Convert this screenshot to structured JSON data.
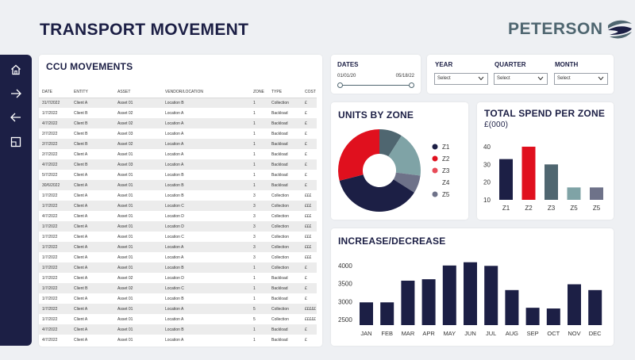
{
  "header": {
    "title": "TRANSPORT MOVEMENT",
    "brand": "PETERSON"
  },
  "sidebar": {
    "items": [
      {
        "icon": "home-icon"
      },
      {
        "icon": "arrow-right-icon"
      },
      {
        "icon": "arrow-left-icon"
      },
      {
        "icon": "layout-icon"
      }
    ]
  },
  "colors": {
    "navy": "#1c1f45",
    "red": "#e0101e",
    "slate": "#4f6670",
    "sage": "#6a8b87",
    "teal": "#7fa3a6",
    "grey": "#6e7289",
    "pink": "#e84b58"
  },
  "table": {
    "title": "CCU MOVEMENTS",
    "columns": [
      "DATE",
      "ENTITY",
      "ASSET",
      "VENDOR/LOCATION",
      "ZONE",
      "TYPE",
      "COST"
    ],
    "rows": [
      [
        "31/7/2022",
        "Client A",
        "Asset 01",
        "Location B",
        "1",
        "Collection",
        "£"
      ],
      [
        "1/7/2022",
        "Client B",
        "Asset 02",
        "Location A",
        "1",
        "Backload",
        "£"
      ],
      [
        "4/7/2022",
        "Client B",
        "Asset 02",
        "Location A",
        "1",
        "Backload",
        "£"
      ],
      [
        "2/7/2022",
        "Client B",
        "Asset 03",
        "Location A",
        "1",
        "Backload",
        "£"
      ],
      [
        "2/7/2022",
        "Client B",
        "Asset 02",
        "Location A",
        "1",
        "Backload",
        "£"
      ],
      [
        "2/7/2022",
        "Client A",
        "Asset 01",
        "Location A",
        "1",
        "Backload",
        "£"
      ],
      [
        "4/7/2022",
        "Client B",
        "Asset 03",
        "Location A",
        "1",
        "Backload",
        "£"
      ],
      [
        "5/7/2022",
        "Client A",
        "Asset 01",
        "Location B",
        "1",
        "Backload",
        "£"
      ],
      [
        "30/6/2022",
        "Client A",
        "Asset 01",
        "Location B",
        "1",
        "Backload",
        "£"
      ],
      [
        "1/7/2022",
        "Client A",
        "Asset 01",
        "Location B",
        "3",
        "Collection",
        "£££"
      ],
      [
        "1/7/2022",
        "Client A",
        "Asset 01",
        "Location C",
        "3",
        "Collection",
        "£££"
      ],
      [
        "4/7/2022",
        "Client A",
        "Asset 01",
        "Location D",
        "3",
        "Collection",
        "£££"
      ],
      [
        "1/7/2022",
        "Client A",
        "Asset 01",
        "Location D",
        "3",
        "Collection",
        "£££"
      ],
      [
        "1/7/2022",
        "Client A",
        "Asset 01",
        "Location C",
        "3",
        "Collection",
        "£££"
      ],
      [
        "1/7/2022",
        "Client A",
        "Asset 01",
        "Location A",
        "3",
        "Collection",
        "£££"
      ],
      [
        "1/7/2022",
        "Client A",
        "Asset 01",
        "Location A",
        "3",
        "Collection",
        "£££"
      ],
      [
        "1/7/2022",
        "Client A",
        "Asset 01",
        "Location B",
        "1",
        "Collection",
        "£"
      ],
      [
        "1/7/2022",
        "Client A",
        "Asset 02",
        "Location D",
        "1",
        "Backload",
        "£"
      ],
      [
        "1/7/2022",
        "Client B",
        "Asset 02",
        "Location C",
        "1",
        "Backload",
        "£"
      ],
      [
        "1/7/2022",
        "Client A",
        "Asset 01",
        "Location B",
        "1",
        "Backload",
        "£"
      ],
      [
        "1/7/2022",
        "Client A",
        "Asset 01",
        "Location A",
        "5",
        "Collection",
        "£££££"
      ],
      [
        "1/7/2022",
        "Client A",
        "Asset 01",
        "Location A",
        "5",
        "Collection",
        "£££££"
      ],
      [
        "4/7/2022",
        "Client A",
        "Asset 01",
        "Location B",
        "1",
        "Backload",
        "£"
      ],
      [
        "4/7/2022",
        "Client A",
        "Asset 01",
        "Location A",
        "1",
        "Backload",
        "£"
      ]
    ]
  },
  "dates": {
    "label": "DATES",
    "start": "01/01/20",
    "end": "05/18/22"
  },
  "filters": [
    {
      "label": "YEAR",
      "value": "Select"
    },
    {
      "label": "QUARTER",
      "value": "Select"
    },
    {
      "label": "MONTH",
      "value": "Select"
    }
  ],
  "units_by_zone": {
    "title": "UNITS BY ZONE"
  },
  "spend": {
    "title": "TOTAL SPEND PER ZONE",
    "subtitle": "£(000)"
  },
  "increase": {
    "title": "INCREASE/DECREASE"
  },
  "chart_data": [
    {
      "type": "pie",
      "title": "UNITS BY ZONE",
      "legend_position": "right",
      "slices": [
        {
          "label": "Z1",
          "value": 37,
          "color": "#1c1f45"
        },
        {
          "label": "Z2",
          "value": 29,
          "color": "#e0101e"
        },
        {
          "label": "Z3",
          "value": 0,
          "color": "#e84b58"
        },
        {
          "label": "Z4",
          "value": 0
        },
        {
          "label": "Z5",
          "value": 7,
          "color": "#6e7289"
        },
        {
          "label": "",
          "value": 18,
          "color": "#7fa3a6"
        },
        {
          "label": "",
          "value": 9,
          "color": "#4f6670"
        }
      ]
    },
    {
      "type": "bar",
      "title": "TOTAL SPEND PER ZONE",
      "subtitle": "£(000)",
      "categories": [
        "Z1",
        "Z2",
        "Z3",
        "Z5",
        "Z5"
      ],
      "values": [
        33,
        40,
        30,
        17,
        17
      ],
      "colors": [
        "#1c1f45",
        "#e0101e",
        "#4f6670",
        "#7fa3a6",
        "#6e7289"
      ],
      "ylim": [
        10,
        40
      ],
      "yticks": [
        10,
        20,
        30,
        40
      ],
      "grid": false
    },
    {
      "type": "bar",
      "title": "INCREASE/DECREASE",
      "categories": [
        "JAN",
        "FEB",
        "MAR",
        "APR",
        "MAY",
        "JUN",
        "JUL",
        "AUG",
        "SEP",
        "OCT",
        "NOV",
        "DEC"
      ],
      "values": [
        2980,
        2980,
        3580,
        3620,
        4000,
        4090,
        3990,
        3320,
        2830,
        2810,
        3480,
        3320
      ],
      "color": "#1c1f45",
      "ylim": [
        2350,
        4150
      ],
      "yticks": [
        2500,
        3000,
        3500,
        4000
      ],
      "grid": false
    }
  ]
}
